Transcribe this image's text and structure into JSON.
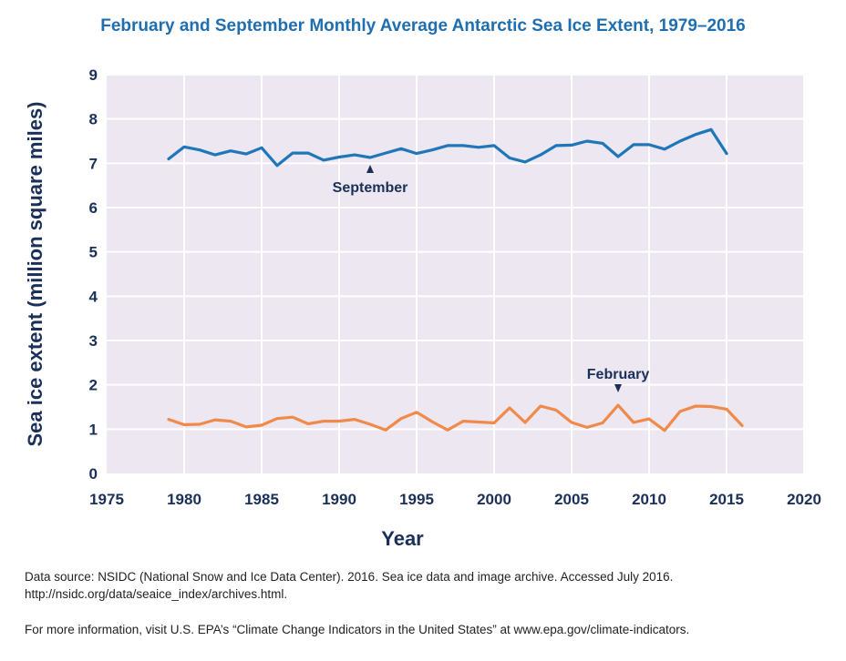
{
  "title": "February and September Monthly Average Antarctic Sea Ice Extent, 1979–2016",
  "colors": {
    "plot_background": "#ece7f1",
    "grid": "#ffffff",
    "september_line": "#1f77b8",
    "february_line": "#f08a4b",
    "text_dark": "#1b3058",
    "title": "#1f6fb0"
  },
  "chart_data": {
    "type": "line",
    "title": "February and September Monthly Average Antarctic Sea Ice Extent, 1979–2016",
    "xlabel": "Year",
    "ylabel": "Sea ice extent (million square miles)",
    "xlim": [
      1975,
      2020
    ],
    "ylim": [
      0,
      9
    ],
    "xticks": [
      1975,
      1980,
      1985,
      1990,
      1995,
      2000,
      2005,
      2010,
      2015,
      2020
    ],
    "yticks": [
      0,
      1,
      2,
      3,
      4,
      5,
      6,
      7,
      8,
      9
    ],
    "grid": true,
    "legend": "none (series labeled by annotations)",
    "series": [
      {
        "name": "September",
        "x": [
          1979,
          1980,
          1981,
          1982,
          1983,
          1984,
          1985,
          1986,
          1987,
          1988,
          1989,
          1990,
          1991,
          1992,
          1993,
          1994,
          1995,
          1996,
          1997,
          1998,
          1999,
          2000,
          2001,
          2002,
          2003,
          2004,
          2005,
          2006,
          2007,
          2008,
          2009,
          2010,
          2011,
          2012,
          2013,
          2014,
          2015
        ],
        "values": [
          7.1,
          7.37,
          7.3,
          7.19,
          7.28,
          7.21,
          7.35,
          6.95,
          7.23,
          7.23,
          7.07,
          7.14,
          7.19,
          7.13,
          7.23,
          7.33,
          7.22,
          7.3,
          7.4,
          7.4,
          7.36,
          7.4,
          7.12,
          7.03,
          7.19,
          7.4,
          7.41,
          7.5,
          7.45,
          7.15,
          7.42,
          7.42,
          7.32,
          7.5,
          7.65,
          7.76,
          7.22
        ]
      },
      {
        "name": "February",
        "x": [
          1979,
          1980,
          1981,
          1982,
          1983,
          1984,
          1985,
          1986,
          1987,
          1988,
          1989,
          1990,
          1991,
          1992,
          1993,
          1994,
          1995,
          1996,
          1997,
          1998,
          1999,
          2000,
          2001,
          2002,
          2003,
          2004,
          2005,
          2006,
          2007,
          2008,
          2009,
          2010,
          2011,
          2012,
          2013,
          2014,
          2015,
          2016
        ],
        "values": [
          1.22,
          1.1,
          1.11,
          1.21,
          1.18,
          1.05,
          1.09,
          1.24,
          1.27,
          1.12,
          1.18,
          1.18,
          1.22,
          1.11,
          0.98,
          1.24,
          1.38,
          1.17,
          0.98,
          1.18,
          1.16,
          1.14,
          1.48,
          1.15,
          1.52,
          1.43,
          1.15,
          1.04,
          1.14,
          1.54,
          1.15,
          1.23,
          0.97,
          1.4,
          1.52,
          1.51,
          1.45,
          1.08
        ]
      }
    ],
    "annotations": [
      {
        "text": "September",
        "points_to_x": 1992,
        "points_to_y": 7.13
      },
      {
        "text": "February",
        "points_to_x": 2008,
        "points_to_y": 1.54
      }
    ]
  },
  "footer": {
    "source_line1": "Data source: NSIDC (National Snow and Ice Data Center). 2016. Sea ice data and image archive. Accessed July 2016.",
    "source_line2": "http://nsidc.org/data/seaice_index/archives.html.",
    "more_info": "For more information, visit U.S. EPA’s “Climate Change Indicators in the United States” at www.epa.gov/climate-indicators."
  }
}
